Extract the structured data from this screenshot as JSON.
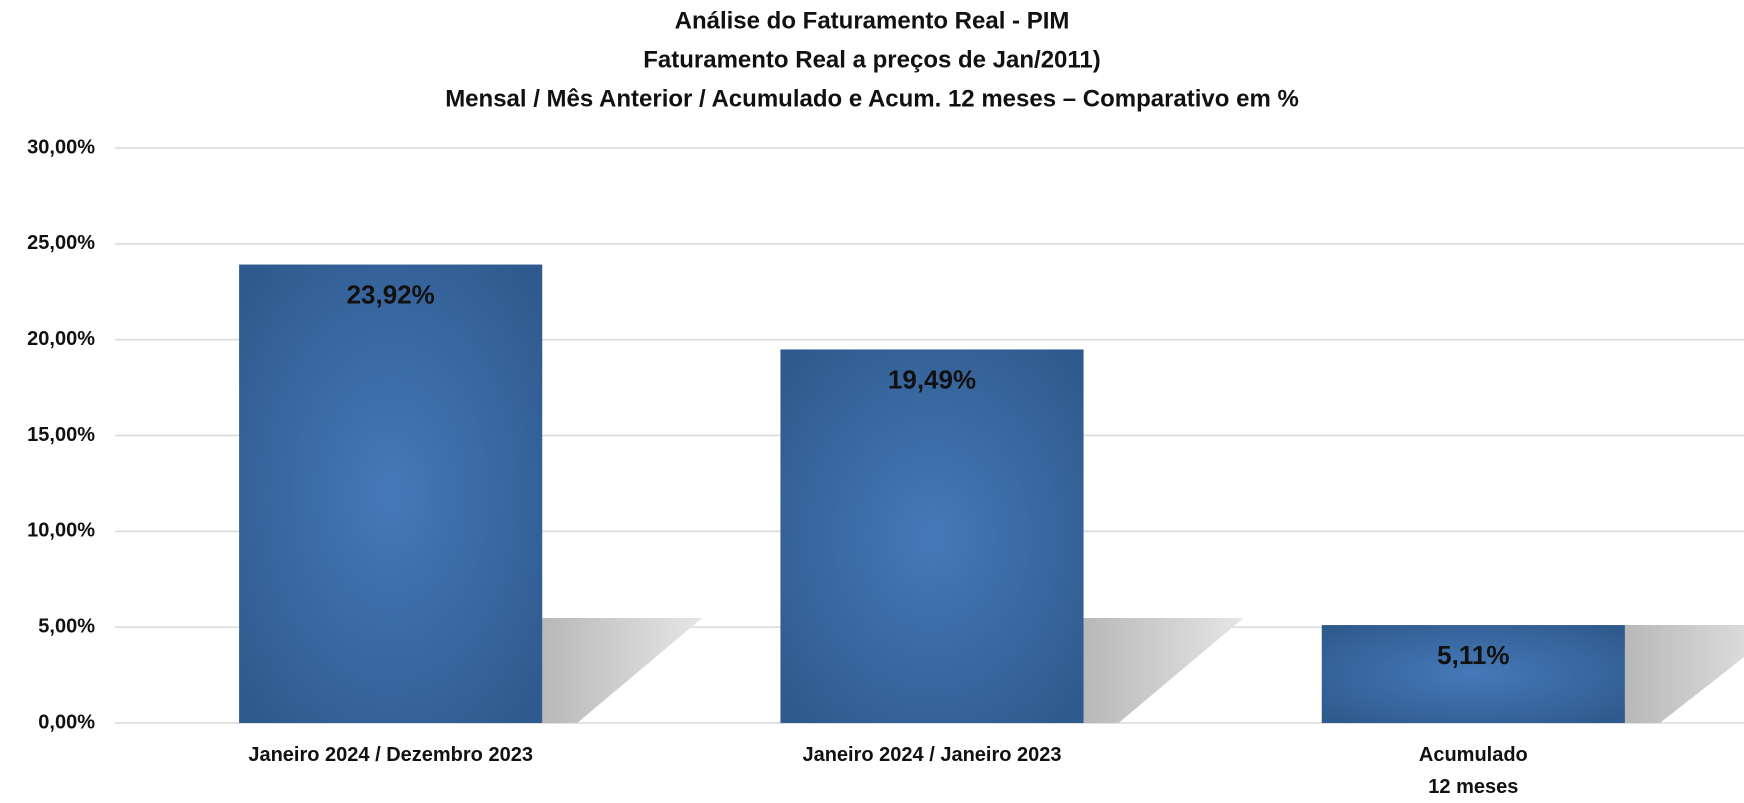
{
  "chart_data": {
    "type": "bar",
    "title": "Análise do Faturamento Real - PIM",
    "subtitle": [
      "Faturamento Real a preços de Jan/2011)",
      "Mensal / Mês Anterior / Acumulado e Acum. 12 meses – Comparativo em %"
    ],
    "categories": [
      "Janeiro 2024 / Dezembro 2023",
      "Janeiro 2024 / Janeiro 2023",
      "Acumulado\n12 meses"
    ],
    "values": [
      23.92,
      19.49,
      5.11
    ],
    "value_labels": [
      "23,92%",
      "19,49%",
      "5,11%"
    ],
    "color": "#3a68a2",
    "ylim": [
      0,
      30
    ],
    "yticks": [
      {
        "value": 0,
        "label": "0,00%"
      },
      {
        "value": 5,
        "label": "5,00%"
      },
      {
        "value": 10,
        "label": "10,00%"
      },
      {
        "value": 15,
        "label": "15,00%"
      },
      {
        "value": 20,
        "label": "20,00%"
      },
      {
        "value": 25,
        "label": "25,00%"
      },
      {
        "value": 30,
        "label": "30,00%"
      }
    ],
    "grid": true
  }
}
